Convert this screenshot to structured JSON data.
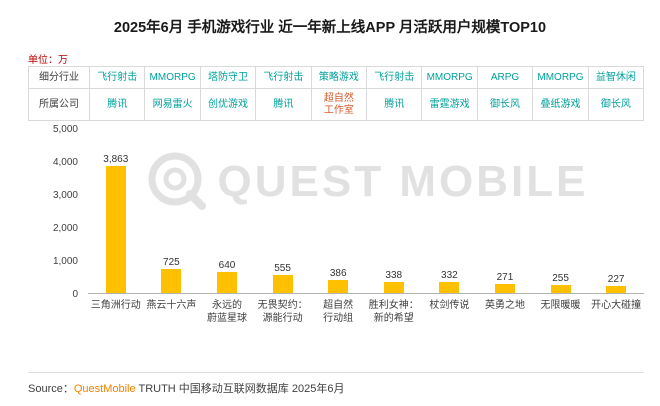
{
  "header": {
    "title": "2025年6月 手机游戏行业 近一年新上线APP 月活跃用户规模TOP10",
    "unit_label": "单位：万"
  },
  "table": {
    "row_labels": [
      "细分行业",
      "所属公司"
    ],
    "text_color": "#00a09b",
    "highlight_color": "#d35b2e",
    "columns": [
      {
        "segment": "飞行射击",
        "company": "腾讯"
      },
      {
        "segment": "MMORPG",
        "company": "网易雷火"
      },
      {
        "segment": "塔防守卫",
        "company": "创优游戏"
      },
      {
        "segment": "飞行射击",
        "company": "腾讯"
      },
      {
        "segment": "策略游戏",
        "company": "超自然\n工作室",
        "company_highlight": true
      },
      {
        "segment": "飞行射击",
        "company": "腾讯"
      },
      {
        "segment": "MMORPG",
        "company": "雷霆游戏"
      },
      {
        "segment": "ARPG",
        "company": "御长风"
      },
      {
        "segment": "MMORPG",
        "company": "叠纸游戏"
      },
      {
        "segment": "益智休闲",
        "company": "御长风"
      }
    ]
  },
  "chart_data": {
    "type": "bar",
    "title": "2025年6月 手机游戏行业 近一年新上线APP 月活跃用户规模TOP10",
    "unit": "万",
    "categories": [
      "三角洲行动",
      "燕云十六声",
      "永远的蔚蓝星球",
      "无畏契约：源能行动",
      "超自然行动组",
      "胜利女神：新的希望",
      "杖剑传说",
      "英勇之地",
      "无限暖暖",
      "开心大碰撞"
    ],
    "category_display": [
      "三角洲行动",
      "燕云十六声",
      "永远的\n蔚蓝星球",
      "无畏契约：\n源能行动",
      "超自然\n行动组",
      "胜利女神：\n新的希望",
      "杖剑传说",
      "英勇之地",
      "无限暖暖",
      "开心大碰撞"
    ],
    "values": [
      3863,
      725,
      640,
      555,
      386,
      338,
      332,
      271,
      255,
      227
    ],
    "value_labels": [
      "3,863",
      "725",
      "640",
      "555",
      "386",
      "338",
      "332",
      "271",
      "255",
      "227"
    ],
    "ylim": [
      0,
      5000
    ],
    "yticks": [
      0,
      1000,
      2000,
      3000,
      4000,
      5000
    ],
    "ytick_labels": [
      "0",
      "1,000",
      "2,000",
      "3,000",
      "4,000",
      "5,000"
    ],
    "bar_color": "#ffc000",
    "grid": false,
    "legend": false
  },
  "watermark": {
    "icon": "questmobile-q-logo",
    "text": "QUEST MOBILE",
    "color": "#e1e1e1"
  },
  "footer": {
    "source_prefix": "Source：",
    "brand": "QuestMobile",
    "brand_color": "#f08300",
    "source_rest": " TRUTH 中国移动互联网数据库 2025年6月"
  }
}
